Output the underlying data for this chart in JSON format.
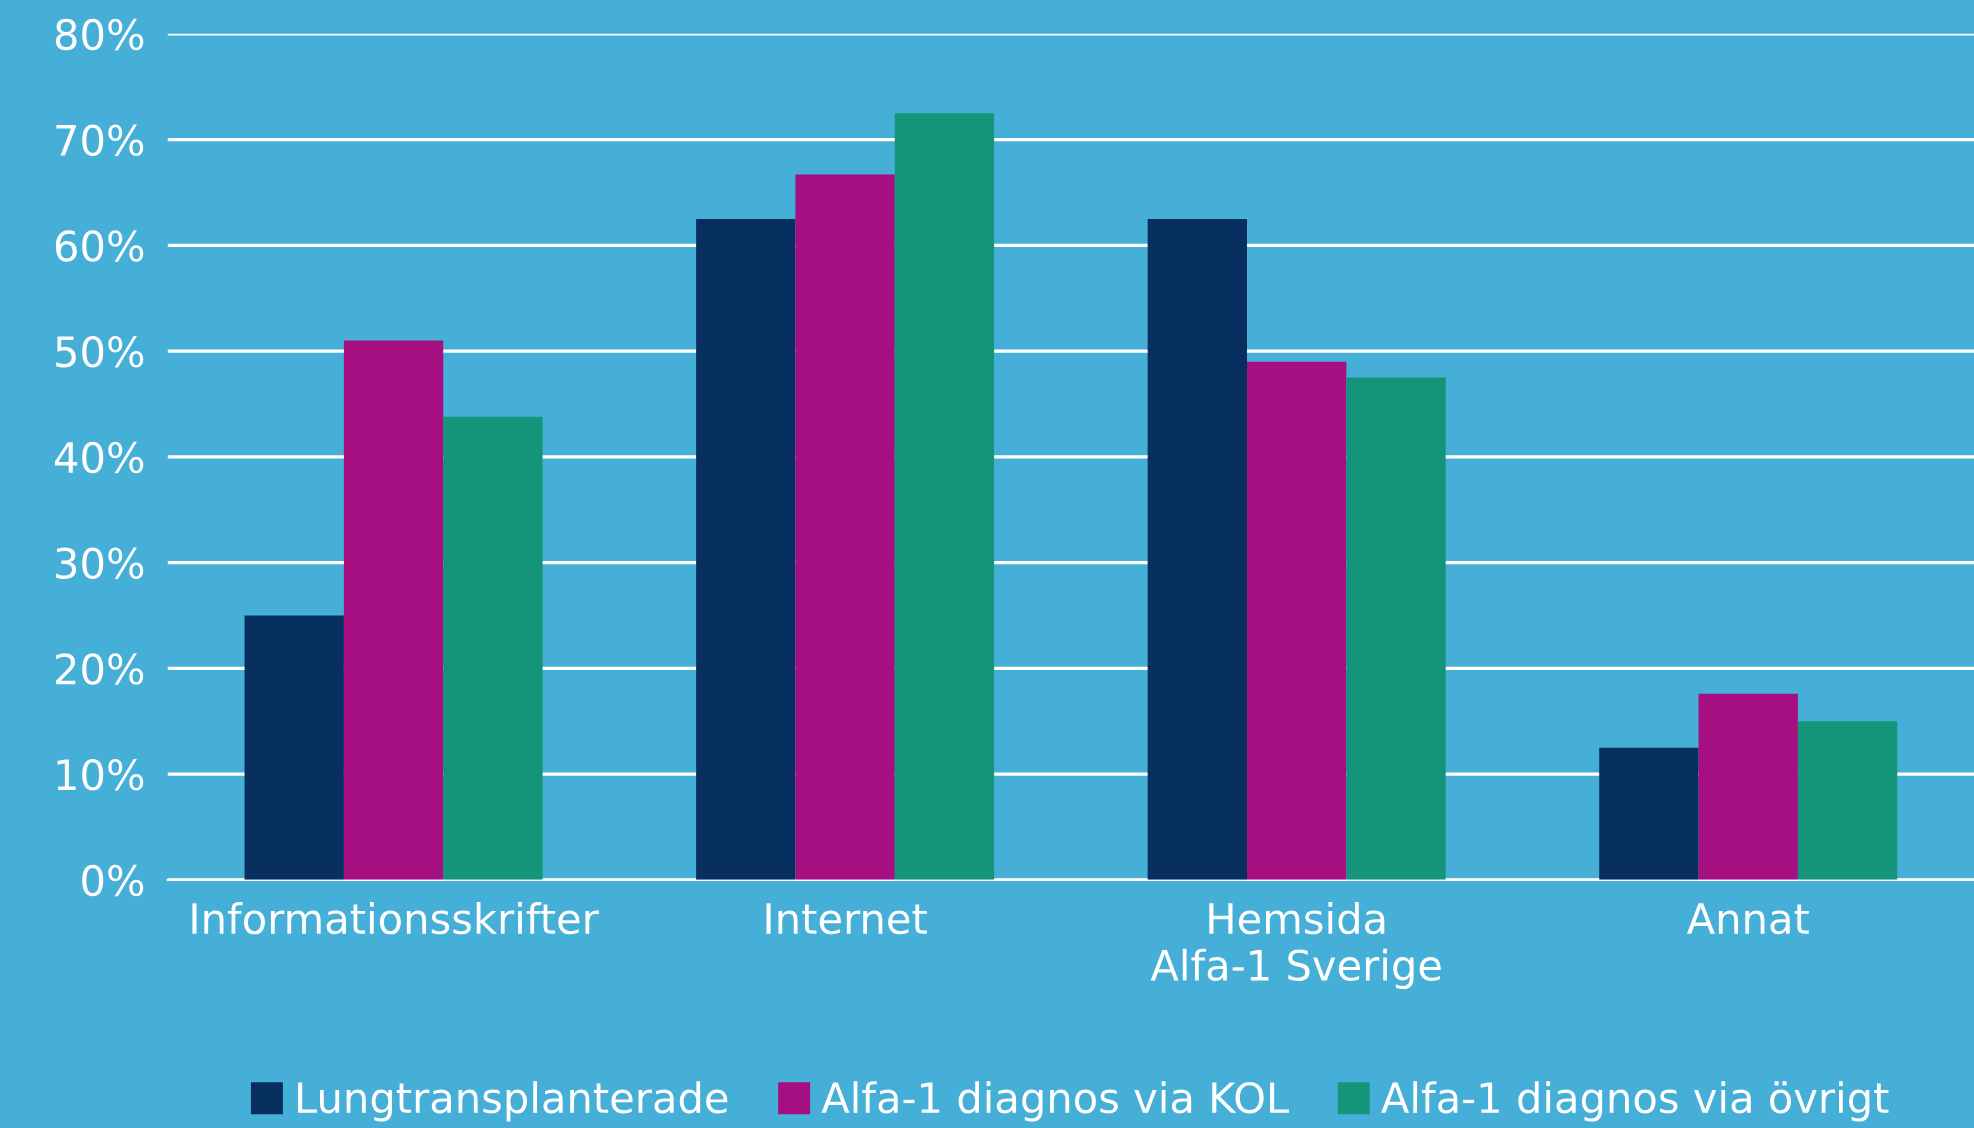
{
  "chart_data": {
    "type": "bar",
    "categories": [
      "Informationsskrifter",
      "Internet",
      "Hemsida\nAlfa-1 Sverige",
      "Annat"
    ],
    "series": [
      {
        "name": "Lungtransplanterade",
        "color": "#062f5f",
        "values": [
          25,
          62.5,
          62.5,
          12.5
        ]
      },
      {
        "name": "Alfa-1 diagnos via KOL",
        "color": "#a50f82",
        "values": [
          51,
          66.7,
          49,
          17.6
        ]
      },
      {
        "name": "Alfa-1 diagnos via övrigt",
        "color": "#14957a",
        "values": [
          43.8,
          72.5,
          47.5,
          15
        ]
      }
    ],
    "ylim": [
      0,
      80
    ],
    "yticks": [
      {
        "value": 0,
        "label": "0%"
      },
      {
        "value": 10,
        "label": "10%"
      },
      {
        "value": 20,
        "label": "20%"
      },
      {
        "value": 30,
        "label": "30%"
      },
      {
        "value": 40,
        "label": "40%"
      },
      {
        "value": 50,
        "label": "50%"
      },
      {
        "value": 60,
        "label": "60%"
      },
      {
        "value": 70,
        "label": "70%"
      },
      {
        "value": 80,
        "label": "80%"
      }
    ],
    "grid": "y",
    "legend": "bottom"
  }
}
